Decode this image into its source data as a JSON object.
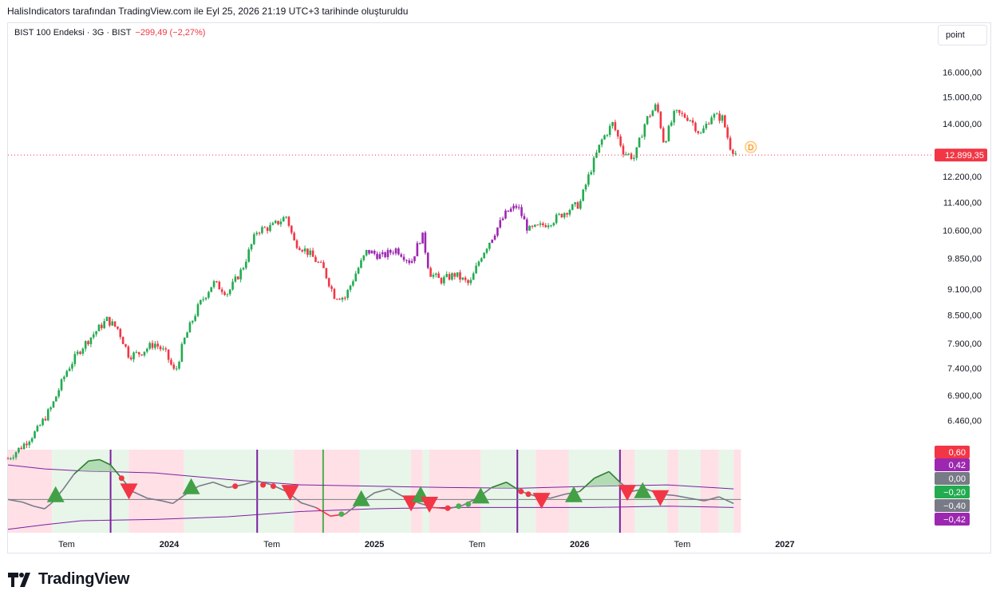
{
  "header": {
    "caption": "HalisIndicators tarafından TradingView.com ile Eyl 25, 2026 21:19 UTC+3 tarihinde oluşturuldu"
  },
  "legend": {
    "symbol": "BIST 100 Endeksi · 3G · BIST",
    "change": "−299,49 (−2,27%)"
  },
  "scale_button": {
    "label": "point"
  },
  "brand": {
    "name": "TradingView"
  },
  "colors": {
    "up": "#22ab50",
    "down": "#f23645",
    "neutral": "#9c27b0",
    "bull_bg": "#e8f5e9",
    "bear_bg": "#ffe0e6",
    "signal_line": "#7b1fa2"
  },
  "chart_data": [
    {
      "type": "candlestick",
      "series_name": "BIST 100 Endeksi",
      "timeframe": "3G",
      "y_scale": "log",
      "ylim": [
        6000,
        16700
      ],
      "y_ticks": [
        {
          "value": 16000,
          "label": "16.000,00"
        },
        {
          "value": 15000,
          "label": "15.000,00"
        },
        {
          "value": 14000,
          "label": "14.000,00"
        },
        {
          "value": 12200,
          "label": "12.200,00"
        },
        {
          "value": 11400,
          "label": "11.400,00"
        },
        {
          "value": 10600,
          "label": "10.600,00"
        },
        {
          "value": 9850,
          "label": "9.850,00"
        },
        {
          "value": 9100,
          "label": "9.100,00"
        },
        {
          "value": 8500,
          "label": "8.500,00"
        },
        {
          "value": 7900,
          "label": "7.900,00"
        },
        {
          "value": 7400,
          "label": "7.400,00"
        },
        {
          "value": 6900,
          "label": "6.900,00"
        },
        {
          "value": 6460,
          "label": "6.460,00"
        }
      ],
      "last_price": {
        "value": 12899.35,
        "label": "12.899,35"
      },
      "dividend_marker": "D",
      "x_ticks": [
        {
          "t": 0.08,
          "label": "Tem"
        },
        {
          "t": 0.22,
          "label": "2024"
        },
        {
          "t": 0.36,
          "label": "Tem"
        },
        {
          "t": 0.5,
          "label": "2025"
        },
        {
          "t": 0.64,
          "label": "Tem"
        },
        {
          "t": 0.78,
          "label": "2026"
        },
        {
          "t": 0.92,
          "label": "Tem"
        },
        {
          "t": 1.06,
          "label": "2027"
        }
      ],
      "x_range": [
        0,
        1.2
      ],
      "price_path": [
        {
          "t": 0.0,
          "price": 5850,
          "state": "up"
        },
        {
          "t": 0.02,
          "price": 6050,
          "state": "up"
        },
        {
          "t": 0.04,
          "price": 6300,
          "state": "up"
        },
        {
          "t": 0.06,
          "price": 6700,
          "state": "up"
        },
        {
          "t": 0.08,
          "price": 7350,
          "state": "up"
        },
        {
          "t": 0.1,
          "price": 7800,
          "state": "up"
        },
        {
          "t": 0.12,
          "price": 8150,
          "state": "up"
        },
        {
          "t": 0.135,
          "price": 8400,
          "state": "up"
        },
        {
          "t": 0.15,
          "price": 8200,
          "state": "down"
        },
        {
          "t": 0.165,
          "price": 7650,
          "state": "down"
        },
        {
          "t": 0.18,
          "price": 7700,
          "state": "down"
        },
        {
          "t": 0.2,
          "price": 7900,
          "state": "down"
        },
        {
          "t": 0.215,
          "price": 7700,
          "state": "down"
        },
        {
          "t": 0.228,
          "price": 7300,
          "state": "down"
        },
        {
          "t": 0.24,
          "price": 7950,
          "state": "up"
        },
        {
          "t": 0.26,
          "price": 8700,
          "state": "up"
        },
        {
          "t": 0.28,
          "price": 9250,
          "state": "up"
        },
        {
          "t": 0.3,
          "price": 9000,
          "state": "up"
        },
        {
          "t": 0.32,
          "price": 9600,
          "state": "up"
        },
        {
          "t": 0.34,
          "price": 10600,
          "state": "up"
        },
        {
          "t": 0.36,
          "price": 10700,
          "state": "up"
        },
        {
          "t": 0.38,
          "price": 11000,
          "state": "up"
        },
        {
          "t": 0.39,
          "price": 10300,
          "state": "down"
        },
        {
          "t": 0.41,
          "price": 10000,
          "state": "down"
        },
        {
          "t": 0.43,
          "price": 9600,
          "state": "down"
        },
        {
          "t": 0.445,
          "price": 8950,
          "state": "down"
        },
        {
          "t": 0.46,
          "price": 8900,
          "state": "down"
        },
        {
          "t": 0.475,
          "price": 9500,
          "state": "down"
        },
        {
          "t": 0.49,
          "price": 10050,
          "state": "neutral"
        },
        {
          "t": 0.51,
          "price": 9900,
          "state": "neutral"
        },
        {
          "t": 0.53,
          "price": 10100,
          "state": "neutral"
        },
        {
          "t": 0.55,
          "price": 9750,
          "state": "neutral"
        },
        {
          "t": 0.565,
          "price": 10500,
          "state": "neutral"
        },
        {
          "t": 0.575,
          "price": 9500,
          "state": "down"
        },
        {
          "t": 0.59,
          "price": 9300,
          "state": "down"
        },
        {
          "t": 0.61,
          "price": 9450,
          "state": "down"
        },
        {
          "t": 0.63,
          "price": 9200,
          "state": "down"
        },
        {
          "t": 0.645,
          "price": 9900,
          "state": "up"
        },
        {
          "t": 0.66,
          "price": 10400,
          "state": "neutral"
        },
        {
          "t": 0.68,
          "price": 11100,
          "state": "neutral"
        },
        {
          "t": 0.695,
          "price": 11300,
          "state": "neutral"
        },
        {
          "t": 0.71,
          "price": 10600,
          "state": "down"
        },
        {
          "t": 0.725,
          "price": 10700,
          "state": "down"
        },
        {
          "t": 0.745,
          "price": 10900,
          "state": "down"
        },
        {
          "t": 0.765,
          "price": 11200,
          "state": "up"
        },
        {
          "t": 0.78,
          "price": 11350,
          "state": "up"
        },
        {
          "t": 0.795,
          "price": 12400,
          "state": "up"
        },
        {
          "t": 0.81,
          "price": 13400,
          "state": "up"
        },
        {
          "t": 0.825,
          "price": 14000,
          "state": "up"
        },
        {
          "t": 0.84,
          "price": 13000,
          "state": "up"
        },
        {
          "t": 0.855,
          "price": 12800,
          "state": "up"
        },
        {
          "t": 0.87,
          "price": 14100,
          "state": "up"
        },
        {
          "t": 0.885,
          "price": 14700,
          "state": "up"
        },
        {
          "t": 0.895,
          "price": 13300,
          "state": "up"
        },
        {
          "t": 0.91,
          "price": 14400,
          "state": "up"
        },
        {
          "t": 0.93,
          "price": 14200,
          "state": "down"
        },
        {
          "t": 0.945,
          "price": 13600,
          "state": "down"
        },
        {
          "t": 0.96,
          "price": 14300,
          "state": "down"
        },
        {
          "t": 0.975,
          "price": 14200,
          "state": "down"
        },
        {
          "t": 0.985,
          "price": 13200,
          "state": "down"
        },
        {
          "t": 0.995,
          "price": 12899,
          "state": "down"
        }
      ]
    },
    {
      "type": "line",
      "pane": "oscillator",
      "ylim": [
        -0.5,
        0.75
      ],
      "zero_line": 0,
      "labels": [
        {
          "value": 0.6,
          "label": "0,60",
          "color": "#f23645"
        },
        {
          "value": 0.42,
          "label": "0,42",
          "color": "#9c27b0"
        },
        {
          "value": 0.0,
          "label": "0,00",
          "color": "#787b86"
        },
        {
          "value": -0.2,
          "label": "−0,20",
          "color": "#22ab50"
        },
        {
          "value": -0.4,
          "label": "−0,40",
          "color": "#787b86"
        },
        {
          "value": -0.42,
          "label": "−0,42",
          "color": "#9c27b0"
        }
      ],
      "background_regions": [
        {
          "t0": 0.0,
          "t1": 0.06,
          "state": "bear"
        },
        {
          "t0": 0.06,
          "t1": 0.165,
          "state": "bull"
        },
        {
          "t0": 0.165,
          "t1": 0.24,
          "state": "bear"
        },
        {
          "t0": 0.24,
          "t1": 0.39,
          "state": "bull"
        },
        {
          "t0": 0.39,
          "t1": 0.48,
          "state": "bear"
        },
        {
          "t0": 0.48,
          "t1": 0.55,
          "state": "bull"
        },
        {
          "t0": 0.55,
          "t1": 0.565,
          "state": "bear"
        },
        {
          "t0": 0.565,
          "t1": 0.575,
          "state": "bull"
        },
        {
          "t0": 0.575,
          "t1": 0.645,
          "state": "bear"
        },
        {
          "t0": 0.645,
          "t1": 0.72,
          "state": "bull"
        },
        {
          "t0": 0.72,
          "t1": 0.765,
          "state": "bear"
        },
        {
          "t0": 0.765,
          "t1": 0.835,
          "state": "bull"
        },
        {
          "t0": 0.835,
          "t1": 0.855,
          "state": "bear"
        },
        {
          "t0": 0.855,
          "t1": 0.9,
          "state": "bull"
        },
        {
          "t0": 0.9,
          "t1": 0.915,
          "state": "bear"
        },
        {
          "t0": 0.915,
          "t1": 0.945,
          "state": "bull"
        },
        {
          "t0": 0.945,
          "t1": 0.97,
          "state": "bear"
        },
        {
          "t0": 0.97,
          "t1": 0.99,
          "state": "bull"
        },
        {
          "t0": 0.99,
          "t1": 1.0,
          "state": "bear"
        }
      ],
      "vertical_markers": [
        {
          "t": 0.14,
          "color": "#7b1fa2"
        },
        {
          "t": 0.34,
          "color": "#7b1fa2"
        },
        {
          "t": 0.43,
          "color": "#4caf50"
        },
        {
          "t": 0.695,
          "color": "#7b1fa2"
        },
        {
          "t": 0.835,
          "color": "#7b1fa2"
        }
      ],
      "oscillator": [
        {
          "t": 0.0,
          "v": 0.0
        },
        {
          "t": 0.02,
          "v": -0.04
        },
        {
          "t": 0.035,
          "v": -0.1
        },
        {
          "t": 0.05,
          "v": -0.14
        },
        {
          "t": 0.06,
          "v": -0.05
        },
        {
          "t": 0.075,
          "v": 0.15
        },
        {
          "t": 0.09,
          "v": 0.38
        },
        {
          "t": 0.11,
          "v": 0.58
        },
        {
          "t": 0.125,
          "v": 0.6
        },
        {
          "t": 0.14,
          "v": 0.52
        },
        {
          "t": 0.155,
          "v": 0.32
        },
        {
          "t": 0.17,
          "v": 0.12
        },
        {
          "t": 0.19,
          "v": 0.02
        },
        {
          "t": 0.21,
          "v": -0.02
        },
        {
          "t": 0.225,
          "v": -0.06
        },
        {
          "t": 0.24,
          "v": 0.06
        },
        {
          "t": 0.26,
          "v": 0.2
        },
        {
          "t": 0.28,
          "v": 0.26
        },
        {
          "t": 0.3,
          "v": 0.18
        },
        {
          "t": 0.32,
          "v": 0.22
        },
        {
          "t": 0.34,
          "v": 0.28
        },
        {
          "t": 0.36,
          "v": 0.22
        },
        {
          "t": 0.38,
          "v": 0.12
        },
        {
          "t": 0.4,
          "v": -0.05
        },
        {
          "t": 0.42,
          "v": -0.12
        },
        {
          "t": 0.44,
          "v": -0.25
        },
        {
          "t": 0.46,
          "v": -0.22
        },
        {
          "t": 0.48,
          "v": -0.05
        },
        {
          "t": 0.5,
          "v": 0.1
        },
        {
          "t": 0.52,
          "v": 0.16
        },
        {
          "t": 0.54,
          "v": 0.04
        },
        {
          "t": 0.56,
          "v": -0.05
        },
        {
          "t": 0.58,
          "v": -0.12
        },
        {
          "t": 0.6,
          "v": -0.14
        },
        {
          "t": 0.62,
          "v": -0.09
        },
        {
          "t": 0.64,
          "v": 0.02
        },
        {
          "t": 0.66,
          "v": 0.18
        },
        {
          "t": 0.68,
          "v": 0.26
        },
        {
          "t": 0.7,
          "v": 0.12
        },
        {
          "t": 0.72,
          "v": 0.05
        },
        {
          "t": 0.74,
          "v": 0.02
        },
        {
          "t": 0.76,
          "v": 0.08
        },
        {
          "t": 0.78,
          "v": 0.12
        },
        {
          "t": 0.8,
          "v": 0.32
        },
        {
          "t": 0.82,
          "v": 0.42
        },
        {
          "t": 0.835,
          "v": 0.26
        },
        {
          "t": 0.85,
          "v": 0.12
        },
        {
          "t": 0.87,
          "v": 0.16
        },
        {
          "t": 0.89,
          "v": 0.08
        },
        {
          "t": 0.91,
          "v": 0.06
        },
        {
          "t": 0.93,
          "v": 0.02
        },
        {
          "t": 0.95,
          "v": -0.02
        },
        {
          "t": 0.97,
          "v": 0.04
        },
        {
          "t": 0.99,
          "v": -0.06
        }
      ],
      "upper_band": [
        {
          "t": 0.0,
          "v": 0.52
        },
        {
          "t": 0.05,
          "v": 0.46
        },
        {
          "t": 0.1,
          "v": 0.43
        },
        {
          "t": 0.2,
          "v": 0.4
        },
        {
          "t": 0.3,
          "v": 0.3
        },
        {
          "t": 0.4,
          "v": 0.22
        },
        {
          "t": 0.5,
          "v": 0.2
        },
        {
          "t": 0.6,
          "v": 0.18
        },
        {
          "t": 0.7,
          "v": 0.17
        },
        {
          "t": 0.8,
          "v": 0.2
        },
        {
          "t": 0.9,
          "v": 0.22
        },
        {
          "t": 0.99,
          "v": 0.16
        }
      ],
      "lower_band": [
        {
          "t": 0.0,
          "v": -0.45
        },
        {
          "t": 0.05,
          "v": -0.38
        },
        {
          "t": 0.1,
          "v": -0.32
        },
        {
          "t": 0.2,
          "v": -0.3
        },
        {
          "t": 0.3,
          "v": -0.26
        },
        {
          "t": 0.4,
          "v": -0.18
        },
        {
          "t": 0.5,
          "v": -0.14
        },
        {
          "t": 0.6,
          "v": -0.12
        },
        {
          "t": 0.7,
          "v": -0.12
        },
        {
          "t": 0.8,
          "v": -0.12
        },
        {
          "t": 0.9,
          "v": -0.1
        },
        {
          "t": 0.99,
          "v": -0.12
        }
      ],
      "signals": [
        {
          "t": 0.065,
          "v": 0.08,
          "type": "buy"
        },
        {
          "t": 0.165,
          "v": 0.12,
          "type": "sell"
        },
        {
          "t": 0.25,
          "v": 0.2,
          "type": "buy"
        },
        {
          "t": 0.385,
          "v": 0.1,
          "type": "sell"
        },
        {
          "t": 0.482,
          "v": 0.02,
          "type": "buy"
        },
        {
          "t": 0.55,
          "v": -0.06,
          "type": "sell"
        },
        {
          "t": 0.563,
          "v": 0.08,
          "type": "buy"
        },
        {
          "t": 0.575,
          "v": -0.08,
          "type": "sell"
        },
        {
          "t": 0.645,
          "v": 0.06,
          "type": "buy"
        },
        {
          "t": 0.728,
          "v": -0.02,
          "type": "sell"
        },
        {
          "t": 0.772,
          "v": 0.08,
          "type": "buy"
        },
        {
          "t": 0.845,
          "v": 0.1,
          "type": "sell"
        },
        {
          "t": 0.866,
          "v": 0.14,
          "type": "buy"
        },
        {
          "t": 0.89,
          "v": 0.02,
          "type": "sell"
        }
      ],
      "dots": [
        {
          "t": 0.155,
          "v": 0.32,
          "color": "#f23645"
        },
        {
          "t": 0.31,
          "v": 0.2,
          "color": "#f23645"
        },
        {
          "t": 0.348,
          "v": 0.22,
          "color": "#f23645"
        },
        {
          "t": 0.362,
          "v": 0.2,
          "color": "#f23645"
        },
        {
          "t": 0.455,
          "v": -0.22,
          "color": "#4caf50"
        },
        {
          "t": 0.6,
          "v": -0.13,
          "color": "#f23645"
        },
        {
          "t": 0.615,
          "v": -0.1,
          "color": "#4caf50"
        },
        {
          "t": 0.628,
          "v": -0.07,
          "color": "#4caf50"
        },
        {
          "t": 0.7,
          "v": 0.12,
          "color": "#f23645"
        },
        {
          "t": 0.71,
          "v": 0.08,
          "color": "#f23645"
        }
      ]
    }
  ]
}
